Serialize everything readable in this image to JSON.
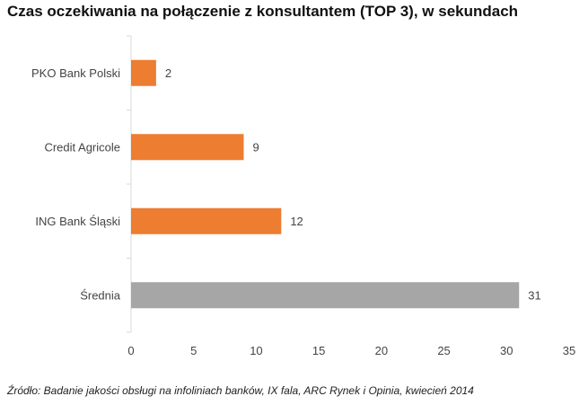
{
  "chart_data": {
    "type": "bar",
    "orientation": "horizontal",
    "title": "Czas oczekiwania na połączenie z konsultantem (TOP 3), w sekundach",
    "categories": [
      "PKO Bank Polski",
      "Credit Agricole",
      "ING Bank Śląski",
      "Średnia"
    ],
    "values": [
      2,
      9,
      12,
      31
    ],
    "colors": [
      "#ED7D31",
      "#ED7D31",
      "#ED7D31",
      "#A6A6A6"
    ],
    "xlim": [
      0,
      35
    ],
    "xticks": [
      0,
      5,
      10,
      15,
      20,
      25,
      30,
      35
    ],
    "xlabel": "",
    "ylabel": "",
    "grid": false,
    "legend": "none"
  },
  "footer": {
    "source": "Źródło: Badanie jakości obsługi na infoliniach banków, IX fala, ARC Rynek i Opinia, kwiecień 2014"
  }
}
